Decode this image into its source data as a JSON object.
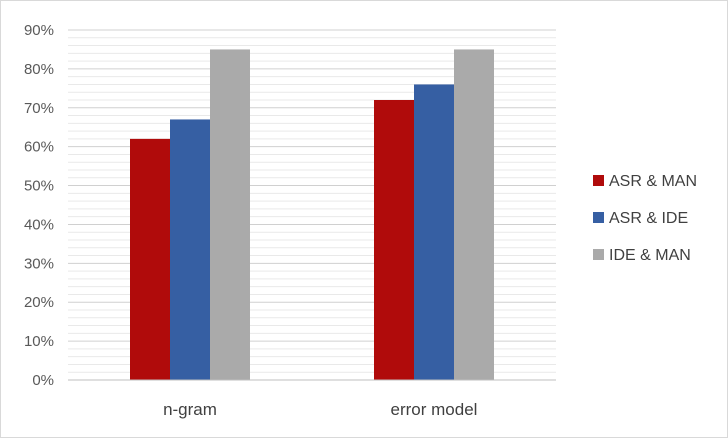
{
  "chart_data": {
    "type": "bar",
    "title": "",
    "xlabel": "",
    "ylabel": "",
    "categories": [
      "n-gram",
      "error model"
    ],
    "series": [
      {
        "name": "ASR & MAN",
        "values": [
          0.62,
          0.72
        ],
        "color": "#b00b0b"
      },
      {
        "name": "ASR & IDE",
        "values": [
          0.67,
          0.76
        ],
        "color": "#365fa3"
      },
      {
        "name": "IDE & MAN",
        "values": [
          0.85,
          0.85
        ],
        "color": "#aaaaaa"
      }
    ],
    "ylim": [
      0,
      0.9
    ],
    "yticks": [
      "0%",
      "10%",
      "20%",
      "30%",
      "40%",
      "50%",
      "60%",
      "70%",
      "80%",
      "90%"
    ],
    "grid": true,
    "minor_grid": true,
    "legend_position": "right"
  }
}
